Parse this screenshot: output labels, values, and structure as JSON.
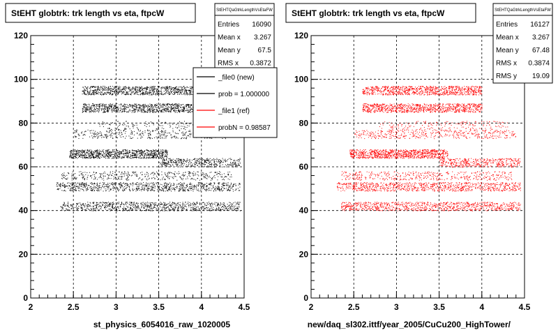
{
  "panels": [
    {
      "id": "left",
      "title": "StEHT globtrk: trk length vs eta, ftpcW",
      "stats": {
        "name": "StEHTQaGtrkLengthVsEtaFW",
        "rows": [
          {
            "label": "Entries",
            "value": "16090"
          },
          {
            "label": "Mean x",
            "value": "3.267"
          },
          {
            "label": "Mean y",
            "value": "67.5"
          },
          {
            "label": "RMS x",
            "value": "0.3872"
          }
        ]
      },
      "legend": [
        {
          "label": "_file0 (new)",
          "color": "#000000"
        },
        {
          "label": "prob = 1.000000",
          "color": "#000000"
        },
        {
          "label": "_file1 (ref)",
          "color": "#ff0000"
        },
        {
          "label": "probN = 0.98587",
          "color": "#ff0000"
        }
      ],
      "xaxis_title": "st_physics_6054016_raw_1020005",
      "marker_color": "#000000"
    },
    {
      "id": "right",
      "title": "StEHT globtrk: trk length vs eta, ftpcW",
      "stats": {
        "name": "StEHTQaGtrkLengthVsEtaFW",
        "rows": [
          {
            "label": "Entries",
            "value": "16127"
          },
          {
            "label": "Mean x",
            "value": "3.267"
          },
          {
            "label": "Mean y",
            "value": "67.48"
          },
          {
            "label": "RMS x",
            "value": "0.3874"
          },
          {
            "label": "RMS y",
            "value": "19.09"
          }
        ]
      },
      "legend": [],
      "xaxis_title": "new/daq_sl302.ittf/year_2005/CuCu200_HighTower/",
      "marker_color": "#ff0000"
    }
  ],
  "chart_data": {
    "type": "scatter",
    "xlim": [
      2,
      4.5
    ],
    "ylim": [
      0,
      120
    ],
    "x_ticks": [
      "2",
      "2.5",
      "3",
      "3.5",
      "4",
      "4.5"
    ],
    "y_ticks": [
      "0",
      "20",
      "40",
      "60",
      "80",
      "100",
      "120"
    ],
    "grid": true,
    "bands": [
      {
        "y": 42,
        "x_min": 2.35,
        "x_max": 4.45,
        "density": "high"
      },
      {
        "y": 51,
        "x_min": 2.3,
        "x_max": 4.45,
        "density": "high"
      },
      {
        "y": 56,
        "x_min": 2.35,
        "x_max": 4.35,
        "density": "medium"
      },
      {
        "y": 62,
        "x_min": 3.5,
        "x_max": 4.45,
        "density": "medium"
      },
      {
        "y": 66,
        "x_min": 2.45,
        "x_max": 3.6,
        "density": "high"
      },
      {
        "y": 75,
        "x_min": 2.5,
        "x_max": 4.4,
        "density": "medium"
      },
      {
        "y": 79,
        "x_min": 2.8,
        "x_max": 4.3,
        "density": "low"
      },
      {
        "y": 87,
        "x_min": 2.6,
        "x_max": 4.0,
        "density": "high"
      },
      {
        "y": 95,
        "x_min": 2.6,
        "x_max": 4.0,
        "density": "high"
      }
    ]
  }
}
